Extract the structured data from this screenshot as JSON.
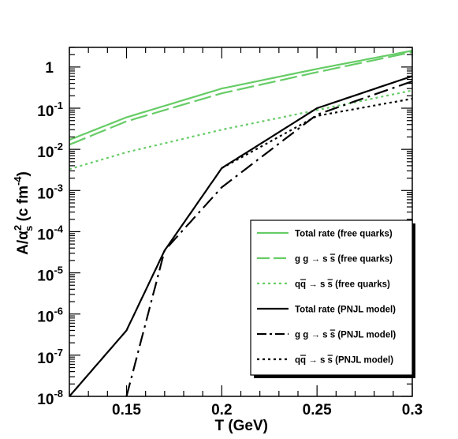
{
  "chart_data": {
    "type": "line",
    "xlabel": "T (GeV)",
    "ylabel_parts": {
      "A": "A/",
      "alpha": "α",
      "sub": "s",
      "sup": "2",
      "unit_open": " (c fm",
      "unit_exp": "-4",
      "unit_close": ")"
    },
    "xlim": [
      0.12,
      0.3
    ],
    "ylim": [
      1e-08,
      3
    ],
    "yscale": "log",
    "x_ticks": [
      {
        "value": 0.15,
        "label": "0.15"
      },
      {
        "value": 0.2,
        "label": "0.2"
      },
      {
        "value": 0.25,
        "label": "0.25"
      },
      {
        "value": 0.3,
        "label": "0.3"
      }
    ],
    "y_ticks": [
      {
        "exp": -8,
        "base": "10",
        "sup": "-8"
      },
      {
        "exp": -7,
        "base": "10",
        "sup": "-7"
      },
      {
        "exp": -6,
        "base": "10",
        "sup": "-6"
      },
      {
        "exp": -5,
        "base": "10",
        "sup": "-5"
      },
      {
        "exp": -4,
        "base": "10",
        "sup": "-4"
      },
      {
        "exp": -3,
        "base": "10",
        "sup": "-3"
      },
      {
        "exp": -2,
        "base": "10",
        "sup": "-2"
      },
      {
        "exp": -1,
        "base": "10",
        "sup": "-1"
      },
      {
        "exp": 0,
        "base": "1",
        "sup": ""
      }
    ],
    "grid": false,
    "legend_placement": "lower-right",
    "series": [
      {
        "name": "Total rate (free quarks)",
        "color": "#66cc66",
        "dash": "solid",
        "x": [
          0.12,
          0.15,
          0.2,
          0.25,
          0.3
        ],
        "y": [
          0.017,
          0.06,
          0.3,
          0.9,
          2.5
        ]
      },
      {
        "name": "g g → s s̄ (free quarks)",
        "color": "#66cc66",
        "dash": "longdash",
        "x": [
          0.12,
          0.15,
          0.2,
          0.25,
          0.3
        ],
        "y": [
          0.013,
          0.048,
          0.23,
          0.75,
          2.3
        ]
      },
      {
        "name": "q q̄ → s s̄ (free quarks)",
        "color": "#66cc66",
        "dash": "dotted",
        "x": [
          0.12,
          0.15,
          0.2,
          0.25,
          0.3
        ],
        "y": [
          0.0033,
          0.0085,
          0.03,
          0.09,
          0.27
        ]
      },
      {
        "name": "Total rate (PNJL model)",
        "color": "#000000",
        "dash": "solid",
        "x": [
          0.12,
          0.15,
          0.17,
          0.2,
          0.25,
          0.3
        ],
        "y": [
          1e-08,
          4e-07,
          3.5e-05,
          0.0035,
          0.1,
          0.6
        ]
      },
      {
        "name": "g g → s s̄ (PNJL model)",
        "color": "#000000",
        "dash": "dashdot",
        "x": [
          0.15,
          0.17,
          0.2,
          0.25,
          0.3
        ],
        "y": [
          1e-08,
          3.5e-05,
          0.0012,
          0.07,
          0.45
        ]
      },
      {
        "name": "q q̄ → s s̄ (PNJL model)",
        "color": "#000000",
        "dash": "dotted",
        "x": [
          0.2,
          0.25,
          0.3
        ],
        "y": [
          0.0035,
          0.065,
          0.17
        ]
      }
    ],
    "legend_entries": [
      {
        "label": "Total rate (free quarks)",
        "color": "#66cc66",
        "dash": "solid"
      },
      {
        "label_prefix": "g g → s ",
        "label_bar": "s",
        "label_suffix": " (free quarks)",
        "color": "#66cc66",
        "dash": "longdash"
      },
      {
        "label_prefix": "q",
        "label_qbar": "q",
        "label_mid": " → s ",
        "label_bar": "s",
        "label_suffix": " (free quarks)",
        "color": "#66cc66",
        "dash": "dotted"
      },
      {
        "label": "Total rate (PNJL model)",
        "color": "#000000",
        "dash": "solid"
      },
      {
        "label_prefix": "g g → s ",
        "label_bar": "s",
        "label_suffix": " (PNJL model)",
        "color": "#000000",
        "dash": "dashdot"
      },
      {
        "label_prefix": "q",
        "label_qbar": "q",
        "label_mid": " → s ",
        "label_bar": "s",
        "label_suffix": " (PNJL model)",
        "color": "#000000",
        "dash": "dotted"
      }
    ]
  }
}
